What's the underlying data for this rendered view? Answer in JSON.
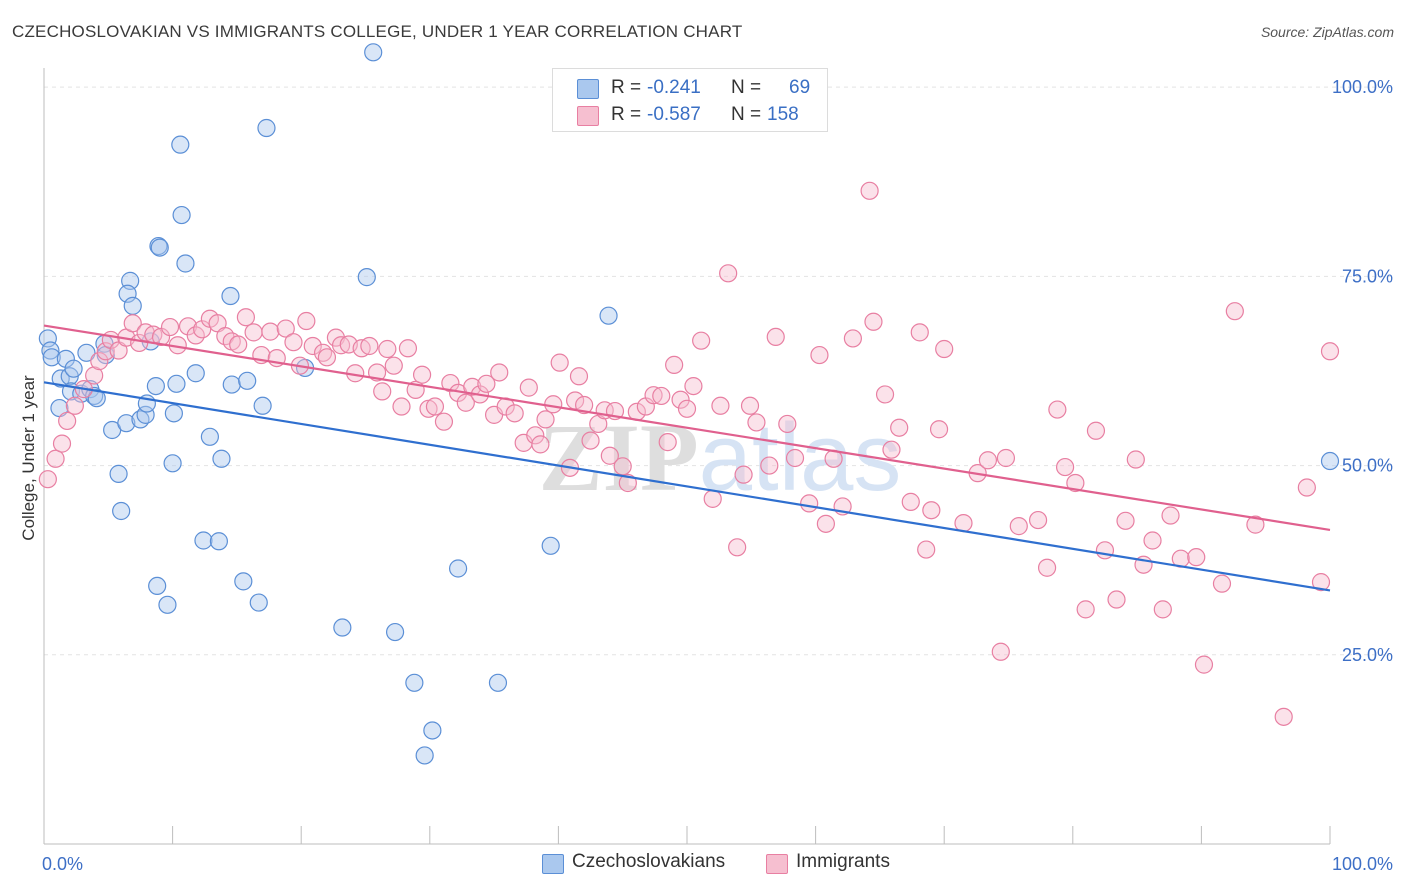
{
  "title": "CZECHOSLOVAKIAN VS IMMIGRANTS COLLEGE, UNDER 1 YEAR CORRELATION CHART",
  "source": "Source: ZipAtlas.com",
  "watermark": "ZIPatlas",
  "colors": {
    "blue_fill": "#aac8ee",
    "blue_stroke": "#5b8fd6",
    "blue_line": "#2f6fcf",
    "pink_fill": "#f6bfd0",
    "pink_stroke": "#e87fa2",
    "pink_line": "#e0608e",
    "tick_label": "#3d6fc6",
    "grid": "#e3e3e3"
  },
  "stats": {
    "rows": [
      {
        "r_label": "R =",
        "r_value": "-0.241",
        "n_label": "N =",
        "n_value": "69"
      },
      {
        "r_label": "R =",
        "r_value": "-0.587",
        "n_label": "N =",
        "n_value": "158"
      }
    ]
  },
  "legend": {
    "items": [
      "Czechoslovakians",
      "Immigrants"
    ]
  },
  "chart_data": {
    "type": "scatter",
    "ylabel": "College, Under 1 year",
    "xlim": [
      0,
      100
    ],
    "ylim": [
      0,
      102
    ],
    "x_tick_labels": [
      {
        "value": 0,
        "label": "0.0%"
      },
      {
        "value": 100,
        "label": "100.0%"
      }
    ],
    "y_tick_labels": [
      {
        "value": 25,
        "label": "25.0%"
      },
      {
        "value": 50,
        "label": "50.0%"
      },
      {
        "value": 75,
        "label": "75.0%"
      },
      {
        "value": 100,
        "label": "100.0%"
      }
    ],
    "grid": true,
    "series": [
      {
        "name": "Czechoslovakians",
        "trend": {
          "x0": 0,
          "y0": 61.0,
          "x1": 100,
          "y1": 33.5
        },
        "points": [
          [
            0.3,
            66.8
          ],
          [
            0.5,
            65.2
          ],
          [
            0.6,
            64.3
          ],
          [
            1.2,
            57.6
          ],
          [
            1.3,
            61.5
          ],
          [
            1.7,
            64.1
          ],
          [
            2.0,
            61.8
          ],
          [
            2.1,
            59.8
          ],
          [
            2.3,
            62.8
          ],
          [
            2.9,
            59.5
          ],
          [
            3.3,
            64.9
          ],
          [
            3.6,
            60.1
          ],
          [
            3.9,
            59.2
          ],
          [
            4.1,
            58.9
          ],
          [
            4.7,
            66.1
          ],
          [
            4.8,
            64.6
          ],
          [
            5.3,
            54.7
          ],
          [
            5.8,
            48.9
          ],
          [
            6.0,
            44.0
          ],
          [
            6.4,
            55.6
          ],
          [
            6.7,
            74.4
          ],
          [
            6.5,
            72.7
          ],
          [
            6.9,
            71.1
          ],
          [
            7.5,
            56.1
          ],
          [
            7.9,
            56.7
          ],
          [
            8.0,
            58.2
          ],
          [
            8.3,
            66.4
          ],
          [
            8.7,
            60.5
          ],
          [
            8.8,
            34.1
          ],
          [
            8.9,
            79.0
          ],
          [
            9.0,
            78.8
          ],
          [
            9.6,
            31.6
          ],
          [
            10.0,
            50.3
          ],
          [
            10.1,
            56.9
          ],
          [
            10.3,
            60.8
          ],
          [
            10.6,
            92.4
          ],
          [
            10.7,
            83.1
          ],
          [
            11.0,
            76.7
          ],
          [
            11.8,
            62.2
          ],
          [
            12.4,
            40.1
          ],
          [
            12.9,
            53.8
          ],
          [
            13.6,
            40.0
          ],
          [
            13.8,
            50.9
          ],
          [
            14.5,
            72.4
          ],
          [
            14.6,
            60.7
          ],
          [
            15.5,
            34.7
          ],
          [
            15.8,
            61.2
          ],
          [
            16.7,
            31.9
          ],
          [
            17.0,
            57.9
          ],
          [
            17.3,
            94.6
          ],
          [
            20.3,
            62.9
          ],
          [
            23.2,
            28.6
          ],
          [
            25.1,
            74.9
          ],
          [
            25.6,
            104.6
          ],
          [
            27.3,
            28.0
          ],
          [
            28.8,
            21.3
          ],
          [
            29.6,
            11.7
          ],
          [
            30.2,
            15.0
          ],
          [
            32.2,
            36.4
          ],
          [
            35.3,
            21.3
          ],
          [
            39.4,
            39.4
          ],
          [
            43.9,
            69.8
          ],
          [
            100.0,
            50.6
          ]
        ]
      },
      {
        "name": "Immigrants",
        "trend": {
          "x0": 0,
          "y0": 68.5,
          "x1": 100,
          "y1": 41.5
        },
        "points": [
          [
            0.3,
            48.2
          ],
          [
            0.9,
            50.9
          ],
          [
            1.4,
            52.9
          ],
          [
            1.8,
            55.9
          ],
          [
            2.4,
            57.9
          ],
          [
            3.1,
            60.1
          ],
          [
            3.9,
            61.9
          ],
          [
            4.3,
            63.8
          ],
          [
            4.8,
            65.1
          ],
          [
            5.2,
            66.6
          ],
          [
            5.8,
            65.2
          ],
          [
            6.4,
            66.9
          ],
          [
            6.9,
            68.8
          ],
          [
            7.4,
            66.2
          ],
          [
            7.9,
            67.6
          ],
          [
            8.5,
            67.3
          ],
          [
            9.1,
            67.0
          ],
          [
            9.8,
            68.3
          ],
          [
            10.4,
            65.9
          ],
          [
            11.2,
            68.4
          ],
          [
            11.8,
            67.2
          ],
          [
            12.3,
            68.0
          ],
          [
            12.9,
            69.4
          ],
          [
            13.5,
            68.8
          ],
          [
            14.1,
            67.1
          ],
          [
            14.6,
            66.4
          ],
          [
            15.1,
            66.0
          ],
          [
            15.7,
            69.6
          ],
          [
            16.3,
            67.6
          ],
          [
            16.9,
            64.6
          ],
          [
            17.6,
            67.7
          ],
          [
            18.1,
            64.2
          ],
          [
            18.8,
            68.1
          ],
          [
            19.4,
            66.3
          ],
          [
            19.9,
            63.2
          ],
          [
            20.4,
            69.1
          ],
          [
            20.9,
            65.8
          ],
          [
            21.7,
            64.9
          ],
          [
            22.0,
            64.3
          ],
          [
            22.7,
            66.9
          ],
          [
            23.1,
            65.9
          ],
          [
            23.7,
            66.0
          ],
          [
            24.2,
            62.2
          ],
          [
            24.7,
            65.5
          ],
          [
            25.3,
            65.8
          ],
          [
            25.9,
            62.3
          ],
          [
            26.3,
            59.8
          ],
          [
            26.7,
            65.4
          ],
          [
            27.2,
            63.2
          ],
          [
            27.8,
            57.8
          ],
          [
            28.3,
            65.5
          ],
          [
            28.9,
            60.0
          ],
          [
            29.4,
            62.0
          ],
          [
            29.9,
            57.5
          ],
          [
            30.4,
            57.8
          ],
          [
            31.1,
            55.8
          ],
          [
            31.6,
            60.9
          ],
          [
            32.2,
            59.6
          ],
          [
            32.8,
            58.3
          ],
          [
            33.3,
            60.4
          ],
          [
            33.9,
            59.4
          ],
          [
            34.4,
            60.8
          ],
          [
            35.0,
            56.7
          ],
          [
            35.4,
            62.3
          ],
          [
            35.9,
            57.8
          ],
          [
            36.6,
            56.9
          ],
          [
            37.3,
            53.0
          ],
          [
            37.7,
            60.3
          ],
          [
            38.2,
            54.0
          ],
          [
            38.6,
            52.8
          ],
          [
            39.0,
            56.1
          ],
          [
            39.6,
            58.1
          ],
          [
            40.1,
            63.6
          ],
          [
            40.9,
            49.7
          ],
          [
            41.3,
            58.6
          ],
          [
            41.6,
            61.8
          ],
          [
            42.0,
            58.0
          ],
          [
            42.5,
            53.3
          ],
          [
            43.1,
            55.5
          ],
          [
            43.6,
            57.3
          ],
          [
            44.0,
            51.3
          ],
          [
            44.4,
            57.2
          ],
          [
            45.0,
            49.9
          ],
          [
            45.4,
            47.7
          ],
          [
            46.1,
            57.1
          ],
          [
            46.8,
            57.8
          ],
          [
            47.4,
            59.3
          ],
          [
            48.0,
            59.2
          ],
          [
            48.5,
            53.1
          ],
          [
            49.0,
            63.3
          ],
          [
            49.5,
            58.7
          ],
          [
            50.0,
            57.5
          ],
          [
            50.5,
            60.5
          ],
          [
            51.1,
            66.5
          ],
          [
            52.0,
            45.6
          ],
          [
            52.6,
            57.9
          ],
          [
            53.2,
            75.4
          ],
          [
            53.9,
            39.2
          ],
          [
            54.4,
            48.8
          ],
          [
            54.9,
            57.9
          ],
          [
            55.4,
            55.7
          ],
          [
            56.4,
            50.0
          ],
          [
            56.9,
            67.0
          ],
          [
            57.8,
            55.5
          ],
          [
            58.4,
            51.0
          ],
          [
            59.5,
            45.0
          ],
          [
            60.3,
            64.6
          ],
          [
            60.8,
            42.3
          ],
          [
            61.4,
            50.9
          ],
          [
            62.1,
            44.6
          ],
          [
            62.9,
            66.8
          ],
          [
            64.2,
            86.3
          ],
          [
            64.5,
            69.0
          ],
          [
            65.4,
            59.4
          ],
          [
            65.9,
            52.1
          ],
          [
            66.5,
            55.0
          ],
          [
            67.4,
            45.2
          ],
          [
            68.1,
            67.6
          ],
          [
            68.6,
            38.9
          ],
          [
            69.0,
            44.1
          ],
          [
            69.6,
            54.8
          ],
          [
            70.0,
            65.4
          ],
          [
            71.5,
            42.4
          ],
          [
            72.6,
            49.0
          ],
          [
            73.4,
            50.7
          ],
          [
            74.4,
            25.4
          ],
          [
            74.8,
            51.0
          ],
          [
            75.8,
            42.0
          ],
          [
            77.3,
            42.8
          ],
          [
            78.0,
            36.5
          ],
          [
            78.8,
            57.4
          ],
          [
            79.4,
            49.8
          ],
          [
            80.2,
            47.7
          ],
          [
            81.0,
            31.0
          ],
          [
            81.8,
            54.6
          ],
          [
            82.5,
            38.8
          ],
          [
            83.4,
            32.3
          ],
          [
            84.1,
            42.7
          ],
          [
            84.9,
            50.8
          ],
          [
            85.5,
            36.9
          ],
          [
            86.2,
            40.1
          ],
          [
            87.0,
            31.0
          ],
          [
            87.6,
            43.4
          ],
          [
            88.4,
            37.7
          ],
          [
            89.6,
            37.9
          ],
          [
            90.2,
            23.7
          ],
          [
            91.6,
            34.4
          ],
          [
            92.6,
            70.4
          ],
          [
            94.2,
            42.2
          ],
          [
            96.4,
            16.8
          ],
          [
            98.2,
            47.1
          ],
          [
            99.3,
            34.6
          ],
          [
            100.0,
            65.1
          ]
        ]
      }
    ]
  }
}
